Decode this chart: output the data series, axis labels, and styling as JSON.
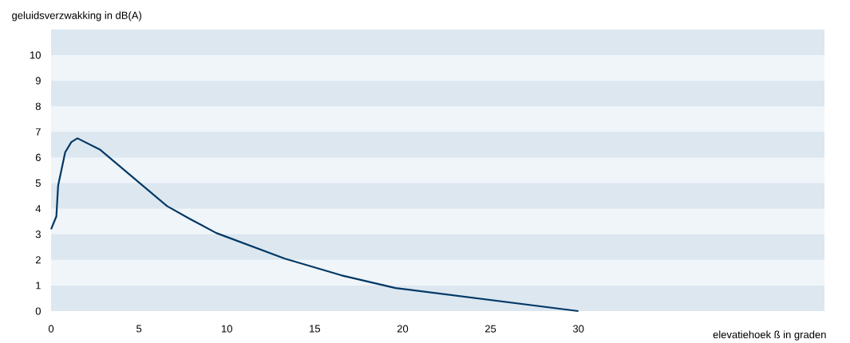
{
  "chart_data": {
    "type": "line",
    "xlabel": "elevatiehoek ß in graden",
    "ylabel": "geluidsverzwakking in dB(A)",
    "x": [
      0,
      0.3,
      0.4,
      0.8,
      1.15,
      1.5,
      2.8,
      6.6,
      7.9,
      9.4,
      13.3,
      16.5,
      19.6,
      30
    ],
    "series": [
      {
        "color": "#003865",
        "values": [
          3.2,
          3.7,
          4.9,
          6.2,
          6.6,
          6.75,
          6.3,
          4.1,
          3.6,
          3.05,
          2.05,
          1.4,
          0.9,
          0
        ]
      }
    ],
    "xlim": [
      0,
      44
    ],
    "ylim": [
      0,
      11
    ],
    "xticks": [
      0,
      5,
      10,
      15,
      20,
      25,
      30
    ],
    "yticks": [
      0,
      1,
      2,
      3,
      4,
      5,
      6,
      7,
      8,
      9,
      10
    ],
    "bands": [
      {
        "axis": "y",
        "from": 0,
        "to": 1,
        "color": "#dce7f0"
      },
      {
        "axis": "y",
        "from": 2,
        "to": 3,
        "color": "#dce7f0"
      },
      {
        "axis": "y",
        "from": 4,
        "to": 5,
        "color": "#dce7f0"
      },
      {
        "axis": "y",
        "from": 6,
        "to": 7,
        "color": "#dce7f0"
      },
      {
        "axis": "y",
        "from": 8,
        "to": 9,
        "color": "#dce7f0"
      },
      {
        "axis": "y",
        "from": 10,
        "to": 11,
        "color": "#dce7f0"
      }
    ],
    "marker": "none",
    "line_style": "solid",
    "grid": false
  }
}
